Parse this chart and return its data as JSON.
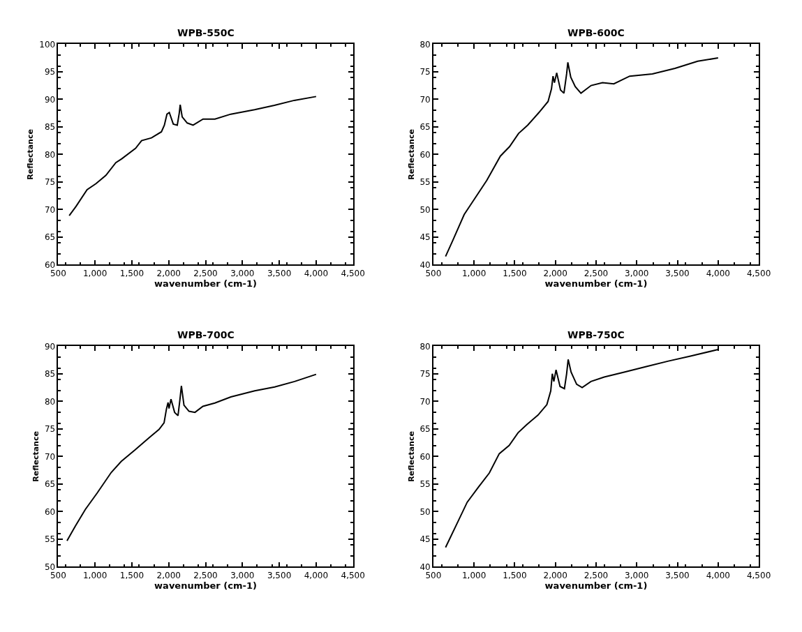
{
  "chart_data": [
    {
      "type": "line",
      "title": "WPB-550C",
      "xlabel": "wavenumber (cm-1)",
      "ylabel": "Reflectance",
      "color": "#000000",
      "x": [
        650,
        744,
        892,
        1013,
        1148,
        1282,
        1363,
        1551,
        1632,
        1766,
        1901,
        1941,
        1976,
        2008,
        2062,
        2116,
        2143,
        2156,
        2183,
        2251,
        2331,
        2466,
        2627,
        2842,
        3165,
        3434,
        3703,
        4000
      ],
      "values": [
        68.9,
        70.6,
        73.6,
        74.7,
        76.2,
        78.5,
        79.2,
        81.1,
        82.5,
        83.0,
        84.1,
        85.3,
        87.3,
        87.6,
        85.5,
        85.3,
        87.5,
        89.0,
        86.8,
        85.7,
        85.3,
        86.4,
        86.4,
        87.3,
        88.1,
        88.9,
        89.8,
        90.5
      ],
      "xlim": [
        500,
        4500
      ],
      "xticks": [
        500,
        {
          "value": 1000,
          "label": "1,000"
        },
        {
          "value": 1500,
          "label": "1,500"
        },
        {
          "value": 2000,
          "label": "2,000"
        },
        {
          "value": 2500,
          "label": "2,500"
        },
        {
          "value": 3000,
          "label": "3,000"
        },
        {
          "value": 3500,
          "label": "3,500"
        },
        {
          "value": 4000,
          "label": "4,000"
        },
        {
          "value": 4500,
          "label": "4,500"
        }
      ],
      "ylim": [
        60,
        100
      ],
      "yticks": [
        60,
        65,
        70,
        75,
        80,
        85,
        90,
        95,
        100
      ]
    },
    {
      "type": "line",
      "title": "WPB-600C",
      "xlabel": "wavenumber (cm-1)",
      "ylabel": "Reflectance",
      "color": "#000000",
      "x": [
        650,
        739,
        879,
        1018,
        1157,
        1324,
        1436,
        1547,
        1659,
        1798,
        1910,
        1952,
        1971,
        1988,
        2016,
        2063,
        2105,
        2138,
        2153,
        2189,
        2244,
        2314,
        2439,
        2579,
        2718,
        2913,
        3192,
        3470,
        3749,
        4000
      ],
      "values": [
        41.5,
        44.4,
        49.1,
        52.2,
        55.3,
        59.7,
        61.4,
        63.8,
        65.3,
        67.6,
        69.6,
        71.9,
        74.2,
        73.0,
        74.8,
        71.7,
        71.1,
        74.6,
        76.7,
        74.0,
        72.3,
        71.1,
        72.5,
        73.0,
        72.8,
        74.2,
        74.6,
        75.6,
        76.9,
        77.5
      ],
      "xlim": [
        500,
        4500
      ],
      "xticks": [
        500,
        {
          "value": 1000,
          "label": "1,000"
        },
        {
          "value": 1500,
          "label": "1,500"
        },
        {
          "value": 2000,
          "label": "2,000"
        },
        {
          "value": 2500,
          "label": "2,500"
        },
        {
          "value": 3000,
          "label": "3,000"
        },
        {
          "value": 3500,
          "label": "3,500"
        },
        {
          "value": 4000,
          "label": "4,000"
        },
        {
          "value": 4500,
          "label": "4,500"
        }
      ],
      "ylim": [
        40,
        80
      ],
      "yticks": [
        40,
        45,
        50,
        55,
        60,
        65,
        70,
        75,
        80
      ]
    },
    {
      "type": "line",
      "title": "WPB-700C",
      "xlabel": "wavenumber (cm-1)",
      "ylabel": "Reflectance",
      "color": "#000000",
      "x": [
        620,
        734,
        869,
        1031,
        1220,
        1355,
        1545,
        1734,
        1869,
        1937,
        1969,
        1991,
        2004,
        2031,
        2080,
        2126,
        2153,
        2172,
        2207,
        2275,
        2356,
        2464,
        2626,
        2843,
        3167,
        3437,
        3708,
        4000
      ],
      "values": [
        54.7,
        57.4,
        60.4,
        63.4,
        67.1,
        69.1,
        71.2,
        73.4,
        74.9,
        76.1,
        78.6,
        79.8,
        78.7,
        80.4,
        78.0,
        77.4,
        80.4,
        82.8,
        79.3,
        78.2,
        78.0,
        79.1,
        79.7,
        80.8,
        81.9,
        82.6,
        83.6,
        84.9
      ],
      "xlim": [
        500,
        4500
      ],
      "xticks": [
        500,
        {
          "value": 1000,
          "label": "1,000"
        },
        {
          "value": 1500,
          "label": "1,500"
        },
        {
          "value": 2000,
          "label": "2,000"
        },
        {
          "value": 2500,
          "label": "2,500"
        },
        {
          "value": 3000,
          "label": "3,000"
        },
        {
          "value": 3500,
          "label": "3,500"
        },
        {
          "value": 4000,
          "label": "4,000"
        },
        {
          "value": 4500,
          "label": "4,500"
        }
      ],
      "ylim": [
        50,
        90
      ],
      "yticks": [
        50,
        55,
        60,
        65,
        70,
        75,
        80,
        85,
        90
      ]
    },
    {
      "type": "line",
      "title": "WPB-750C",
      "xlabel": "wavenumber (cm-1)",
      "ylabel": "Reflectance",
      "color": "#000000",
      "x": [
        650,
        780,
        916,
        1052,
        1188,
        1310,
        1432,
        1541,
        1650,
        1786,
        1895,
        1943,
        1962,
        1981,
        2008,
        2057,
        2111,
        2138,
        2157,
        2193,
        2261,
        2329,
        2437,
        2600,
        2845,
        3117,
        3389,
        3660,
        4000
      ],
      "values": [
        43.5,
        47.5,
        51.7,
        54.4,
        57.0,
        60.5,
        62.0,
        64.3,
        65.8,
        67.5,
        69.4,
        71.9,
        75.0,
        73.6,
        75.7,
        72.7,
        72.3,
        75.0,
        77.6,
        75.3,
        73.1,
        72.5,
        73.6,
        74.4,
        75.3,
        76.3,
        77.3,
        78.2,
        79.4
      ],
      "xlim": [
        500,
        4500
      ],
      "xticks": [
        500,
        {
          "value": 1000,
          "label": "1,000"
        },
        {
          "value": 1500,
          "label": "1,500"
        },
        {
          "value": 2000,
          "label": "2,000"
        },
        {
          "value": 2500,
          "label": "2,500"
        },
        {
          "value": 3000,
          "label": "3,000"
        },
        {
          "value": 3500,
          "label": "3,500"
        },
        {
          "value": 4000,
          "label": "4,000"
        },
        {
          "value": 4500,
          "label": "4,500"
        }
      ],
      "ylim": [
        40,
        80
      ],
      "yticks": [
        40,
        45,
        50,
        55,
        60,
        65,
        70,
        75,
        80
      ]
    }
  ]
}
